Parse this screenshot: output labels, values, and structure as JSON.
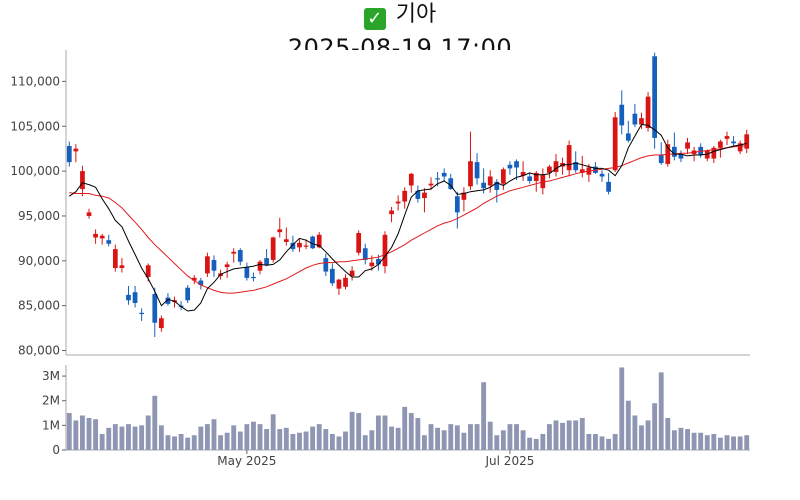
{
  "header": {
    "status_icon": "green-check-icon",
    "check_glyph": "✓",
    "name": "기아",
    "datetime": "2025-08-19 17:00"
  },
  "colors": {
    "up": "#d91414",
    "down": "#1560bd",
    "ma_short": "#000000",
    "ma_long": "#e31a1c",
    "volume": "#8f96b3"
  },
  "chart_data": [
    {
      "type": "candlestick",
      "title": "",
      "xlabel": "",
      "ylabel": "",
      "ylim": [
        79500,
        113500
      ],
      "yticks": [
        80000,
        85000,
        90000,
        95000,
        100000,
        105000,
        110000
      ],
      "ytick_labels": [
        "80,000",
        "85,000",
        "90,000",
        "95,000",
        "100,000",
        "105,000",
        "110,000"
      ],
      "grid": false,
      "candles": [
        [
          102800,
          103300,
          100500,
          101000
        ],
        [
          102200,
          103000,
          101000,
          102500
        ],
        [
          98000,
          100600,
          97200,
          100000
        ],
        [
          95000,
          95800,
          94700,
          95400
        ],
        [
          92600,
          93500,
          91900,
          93000
        ],
        [
          92500,
          93000,
          91800,
          92800
        ],
        [
          92300,
          92900,
          91600,
          91900
        ],
        [
          89200,
          91800,
          88800,
          91300
        ],
        [
          89200,
          90300,
          88700,
          89500
        ],
        [
          86200,
          87200,
          85100,
          85600
        ],
        [
          86500,
          87200,
          84800,
          85300
        ],
        [
          84200,
          84700,
          83300,
          84100
        ],
        [
          88200,
          89700,
          87700,
          89500
        ],
        [
          86300,
          87000,
          81500,
          83100
        ],
        [
          82500,
          83900,
          82100,
          83600
        ],
        [
          85900,
          86400,
          85000,
          85200
        ],
        [
          85400,
          86000,
          84800,
          85600
        ],
        [
          85000,
          85500,
          84500,
          84900
        ],
        [
          87000,
          87300,
          85300,
          85600
        ],
        [
          87800,
          88400,
          87400,
          88100
        ],
        [
          87800,
          88100,
          86800,
          87300
        ],
        [
          88600,
          90900,
          88200,
          90500
        ],
        [
          90100,
          90600,
          88200,
          88900
        ],
        [
          88300,
          89000,
          87900,
          88600
        ],
        [
          89300,
          89900,
          88100,
          89600
        ],
        [
          90800,
          91400,
          89800,
          91000
        ],
        [
          91200,
          91400,
          89500,
          89900
        ],
        [
          89300,
          89800,
          87800,
          88100
        ],
        [
          88200,
          88700,
          87700,
          88100
        ],
        [
          88900,
          90100,
          88500,
          89900
        ],
        [
          90300,
          91300,
          89400,
          89500
        ],
        [
          90100,
          92700,
          89800,
          92600
        ],
        [
          93200,
          94800,
          92600,
          93500
        ],
        [
          92100,
          93700,
          91700,
          92400
        ],
        [
          92000,
          92800,
          91000,
          91300
        ],
        [
          91500,
          92400,
          91000,
          92000
        ],
        [
          91600,
          92400,
          91300,
          91700
        ],
        [
          92700,
          92800,
          91300,
          91400
        ],
        [
          91500,
          93200,
          91400,
          92900
        ],
        [
          90300,
          90800,
          88300,
          88800
        ],
        [
          89100,
          89700,
          87200,
          87500
        ],
        [
          86900,
          88000,
          86200,
          87900
        ],
        [
          87100,
          88500,
          86800,
          88100
        ],
        [
          88300,
          89400,
          87800,
          88900
        ],
        [
          90900,
          93400,
          90600,
          93100
        ],
        [
          91400,
          91900,
          89600,
          90100
        ],
        [
          89400,
          90600,
          88900,
          89800
        ],
        [
          90200,
          90700,
          88900,
          89600
        ],
        [
          89400,
          93300,
          88600,
          92900
        ],
        [
          95200,
          96000,
          94300,
          95600
        ],
        [
          96400,
          97300,
          95600,
          96600
        ],
        [
          96600,
          98200,
          95800,
          97800
        ],
        [
          98400,
          99800,
          97600,
          99700
        ],
        [
          97800,
          98400,
          96500,
          96900
        ],
        [
          97000,
          98100,
          95400,
          97600
        ],
        [
          98400,
          99300,
          97900,
          98600
        ],
        [
          99200,
          99900,
          98300,
          99100
        ],
        [
          99800,
          100300,
          98900,
          99400
        ],
        [
          99200,
          99700,
          97900,
          98000
        ],
        [
          97200,
          97700,
          93600,
          95400
        ],
        [
          96800,
          98200,
          95500,
          97600
        ],
        [
          98300,
          104400,
          97900,
          101100
        ],
        [
          101000,
          102000,
          98500,
          99200
        ],
        [
          98700,
          100300,
          97500,
          98100
        ],
        [
          98400,
          100100,
          97600,
          99400
        ],
        [
          98800,
          99100,
          96500,
          97900
        ],
        [
          98600,
          100400,
          97900,
          100200
        ],
        [
          100700,
          101100,
          99600,
          100300
        ],
        [
          101100,
          101300,
          99000,
          100400
        ],
        [
          99500,
          101100,
          98900,
          99900
        ],
        [
          99400,
          99800,
          98600,
          98900
        ],
        [
          98900,
          100000,
          97700,
          99800
        ],
        [
          98100,
          100300,
          97400,
          99600
        ],
        [
          99800,
          100700,
          99200,
          100500
        ],
        [
          99900,
          101900,
          99400,
          101100
        ],
        [
          100500,
          101500,
          99600,
          100900
        ],
        [
          100100,
          103400,
          99500,
          102900
        ],
        [
          101000,
          102200,
          99800,
          100100
        ],
        [
          99800,
          101700,
          99300,
          100200
        ],
        [
          99600,
          100800,
          98800,
          100400
        ],
        [
          100500,
          101000,
          99700,
          99800
        ],
        [
          99700,
          100100,
          98800,
          99400
        ],
        [
          98800,
          99800,
          97400,
          97700
        ],
        [
          100100,
          106600,
          99900,
          106000
        ],
        [
          107400,
          109000,
          104100,
          105100
        ],
        [
          104200,
          105600,
          103200,
          103400
        ],
        [
          106400,
          107500,
          104900,
          105200
        ],
        [
          105200,
          106500,
          104700,
          105900
        ],
        [
          104800,
          108800,
          104400,
          108300
        ],
        [
          112800,
          113200,
          102500,
          103700
        ],
        [
          101800,
          103200,
          100700,
          100900
        ],
        [
          100800,
          103500,
          100500,
          103000
        ],
        [
          102700,
          104300,
          101200,
          101600
        ],
        [
          101900,
          102300,
          101000,
          101400
        ],
        [
          102500,
          103700,
          101900,
          103200
        ],
        [
          101900,
          102700,
          101100,
          102300
        ],
        [
          102700,
          103100,
          101500,
          101800
        ],
        [
          101400,
          102400,
          101100,
          102300
        ],
        [
          101400,
          102800,
          100900,
          102600
        ],
        [
          102600,
          103500,
          101500,
          103300
        ],
        [
          103600,
          104400,
          102900,
          103900
        ],
        [
          103300,
          103900,
          102700,
          103100
        ],
        [
          102200,
          103400,
          101900,
          103100
        ],
        [
          102500,
          104600,
          102000,
          104100
        ]
      ],
      "ma_short": [
        97200,
        97700,
        98700,
        98500,
        98200,
        96900,
        95800,
        94500,
        93800,
        92200,
        90700,
        89200,
        88000,
        86600,
        85000,
        85700,
        85500,
        84900,
        84400,
        84500,
        85300,
        86900,
        87600,
        88500,
        88800,
        89100,
        89200,
        89300,
        89400,
        89600,
        89500,
        89600,
        90100,
        91000,
        91800,
        92500,
        92300,
        91900,
        91700,
        91000,
        90200,
        89500,
        88800,
        88200,
        88200,
        88900,
        89100,
        89600,
        90500,
        91500,
        93000,
        95100,
        97100,
        97800,
        97900,
        98000,
        98600,
        98900,
        98400,
        97400,
        97500,
        97700,
        97800,
        97900,
        98200,
        98700,
        98400,
        98900,
        99300,
        99500,
        99800,
        99600,
        99600,
        99700,
        100300,
        100700,
        100700,
        100900,
        100700,
        100500,
        100300,
        100300,
        100100,
        99500,
        100600,
        102600,
        103900,
        105200,
        105100,
        104600,
        104000,
        102600,
        101900,
        101900,
        101700,
        101800,
        101800,
        101900,
        102200,
        102400,
        102600,
        102800,
        102900,
        103100
      ],
      "ma_long": [
        97600,
        97500,
        97500,
        97500,
        97300,
        97200,
        97000,
        96500,
        95900,
        95100,
        94300,
        93500,
        92600,
        91800,
        91100,
        90400,
        89700,
        89000,
        88300,
        87800,
        87300,
        87000,
        86700,
        86500,
        86400,
        86400,
        86500,
        86600,
        86700,
        86900,
        87100,
        87400,
        87700,
        88000,
        88400,
        88800,
        89200,
        89500,
        89700,
        89800,
        89800,
        89900,
        89900,
        90000,
        90100,
        90200,
        90300,
        90400,
        90700,
        91000,
        91400,
        91800,
        92300,
        92700,
        93100,
        93500,
        93900,
        94200,
        94400,
        94700,
        95100,
        95500,
        95900,
        96400,
        96800,
        97200,
        97500,
        97800,
        98000,
        98200,
        98400,
        98600,
        98800,
        98900,
        99100,
        99300,
        99500,
        99700,
        99900,
        100000,
        100100,
        100200,
        100300,
        100400,
        100600,
        100900,
        101200,
        101500,
        101700,
        101800,
        101800,
        101900,
        101900,
        102000,
        102000,
        102100,
        102200,
        102300,
        102400,
        102500,
        102600,
        102700,
        102800,
        102800
      ]
    },
    {
      "type": "bar",
      "title": "",
      "xlabel": "",
      "ylabel": "",
      "ylim": [
        0,
        3450000
      ],
      "yticks": [
        0,
        1000000,
        2000000,
        3000000
      ],
      "ytick_labels": [
        "0",
        "1M",
        "2M",
        "3M"
      ],
      "xtick_labels": [
        {
          "label": "May 2025",
          "index": 27
        },
        {
          "label": "Jul 2025",
          "index": 67
        }
      ],
      "values": [
        1500000,
        1200000,
        1400000,
        1300000,
        1250000,
        650000,
        900000,
        1050000,
        950000,
        1050000,
        950000,
        1000000,
        1400000,
        2200000,
        1000000,
        600000,
        550000,
        650000,
        500000,
        600000,
        950000,
        1050000,
        1250000,
        600000,
        700000,
        1000000,
        750000,
        1050000,
        1150000,
        1050000,
        850000,
        1450000,
        850000,
        900000,
        650000,
        700000,
        750000,
        950000,
        1050000,
        850000,
        650000,
        550000,
        750000,
        1550000,
        1500000,
        600000,
        800000,
        1400000,
        1400000,
        950000,
        900000,
        1750000,
        1500000,
        1300000,
        600000,
        1050000,
        900000,
        800000,
        1050000,
        1000000,
        700000,
        1050000,
        1050000,
        2750000,
        1150000,
        600000,
        800000,
        1050000,
        1050000,
        800000,
        500000,
        450000,
        650000,
        1050000,
        1200000,
        1100000,
        1200000,
        1200000,
        1300000,
        650000,
        650000,
        550000,
        450000,
        650000,
        3350000,
        2000000,
        1400000,
        1000000,
        1200000,
        1900000,
        3150000,
        1300000,
        800000,
        900000,
        850000,
        700000,
        700000,
        600000,
        650000,
        500000,
        600000,
        550000,
        550000,
        600000
      ]
    }
  ]
}
